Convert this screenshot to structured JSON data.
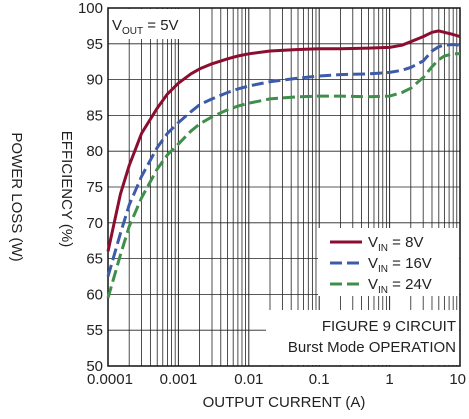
{
  "chart_data": {
    "type": "line",
    "x_scale": "log",
    "xlabel": "OUTPUT CURRENT (A)",
    "ylabel": "EFFICIENCY (%)",
    "ylabel2": "POWER LOSS (W)",
    "xlim": [
      0.0001,
      10
    ],
    "ylim": [
      50,
      100
    ],
    "x_ticks": [
      "0.0001",
      "0.001",
      "0.01",
      "0.1",
      "1",
      "10"
    ],
    "y_ticks": [
      "50",
      "55",
      "60",
      "65",
      "70",
      "75",
      "80",
      "85",
      "90",
      "95",
      "100"
    ],
    "grid": true,
    "legend_position": "right",
    "annotations": {
      "vout": {
        "main": "V",
        "sub": "OUT",
        "rest": " = 5V"
      },
      "figure_note": [
        "FIGURE 9 CIRCUIT",
        "Burst Mode OPERATION"
      ]
    },
    "series": [
      {
        "label_main": "V",
        "label_sub": "IN",
        "label_rest": " = 8V",
        "color": "#8b0d2f",
        "dash": "solid",
        "points": [
          [
            0.0001,
            66
          ],
          [
            0.00015,
            74
          ],
          [
            0.0002,
            78
          ],
          [
            0.0003,
            82.5
          ],
          [
            0.0005,
            86
          ],
          [
            0.0007,
            88
          ],
          [
            0.001,
            89.5
          ],
          [
            0.0015,
            90.8
          ],
          [
            0.002,
            91.5
          ],
          [
            0.003,
            92.2
          ],
          [
            0.005,
            92.9
          ],
          [
            0.007,
            93.3
          ],
          [
            0.01,
            93.6
          ],
          [
            0.02,
            94
          ],
          [
            0.05,
            94.2
          ],
          [
            0.1,
            94.3
          ],
          [
            0.2,
            94.3
          ],
          [
            0.5,
            94.4
          ],
          [
            1,
            94.5
          ],
          [
            1.5,
            94.8
          ],
          [
            2,
            95.3
          ],
          [
            3,
            96
          ],
          [
            4,
            96.6
          ],
          [
            5,
            96.8
          ],
          [
            6,
            96.6
          ],
          [
            8,
            96.3
          ],
          [
            10,
            96
          ]
        ]
      },
      {
        "label_main": "V",
        "label_sub": "IN",
        "label_rest": " = 16V",
        "color": "#3d5ba8",
        "dash": "dashed",
        "points": [
          [
            0.0001,
            62.5
          ],
          [
            0.00015,
            68.5
          ],
          [
            0.0002,
            72.5
          ],
          [
            0.0003,
            76.5
          ],
          [
            0.0005,
            80.5
          ],
          [
            0.0007,
            82.5
          ],
          [
            0.001,
            84
          ],
          [
            0.0015,
            85.5
          ],
          [
            0.002,
            86.5
          ],
          [
            0.003,
            87.3
          ],
          [
            0.005,
            88.2
          ],
          [
            0.007,
            88.7
          ],
          [
            0.01,
            89.1
          ],
          [
            0.02,
            89.7
          ],
          [
            0.05,
            90.2
          ],
          [
            0.1,
            90.5
          ],
          [
            0.2,
            90.7
          ],
          [
            0.5,
            90.8
          ],
          [
            1,
            91
          ],
          [
            1.5,
            91.3
          ],
          [
            2,
            91.7
          ],
          [
            3,
            92.6
          ],
          [
            4,
            94
          ],
          [
            5,
            94.6
          ],
          [
            6,
            94.8
          ],
          [
            8,
            94.9
          ],
          [
            10,
            94.8
          ]
        ]
      },
      {
        "label_main": "V",
        "label_sub": "IN",
        "label_rest": " = 24V",
        "color": "#3f8f4a",
        "dash": "dashed",
        "points": [
          [
            0.0001,
            59.5
          ],
          [
            0.00015,
            65.5
          ],
          [
            0.0002,
            69.5
          ],
          [
            0.0003,
            73.5
          ],
          [
            0.0005,
            77.5
          ],
          [
            0.0007,
            79.5
          ],
          [
            0.001,
            81
          ],
          [
            0.0015,
            82.8
          ],
          [
            0.002,
            83.8
          ],
          [
            0.003,
            84.8
          ],
          [
            0.005,
            85.8
          ],
          [
            0.007,
            86.3
          ],
          [
            0.01,
            86.7
          ],
          [
            0.02,
            87.3
          ],
          [
            0.05,
            87.6
          ],
          [
            0.1,
            87.7
          ],
          [
            0.2,
            87.7
          ],
          [
            0.5,
            87.6
          ],
          [
            1,
            87.7
          ],
          [
            1.5,
            88.2
          ],
          [
            2,
            88.8
          ],
          [
            3,
            90.3
          ],
          [
            4,
            91.8
          ],
          [
            5,
            92.8
          ],
          [
            6,
            93.3
          ],
          [
            8,
            93.6
          ],
          [
            10,
            93.6
          ]
        ]
      }
    ]
  }
}
